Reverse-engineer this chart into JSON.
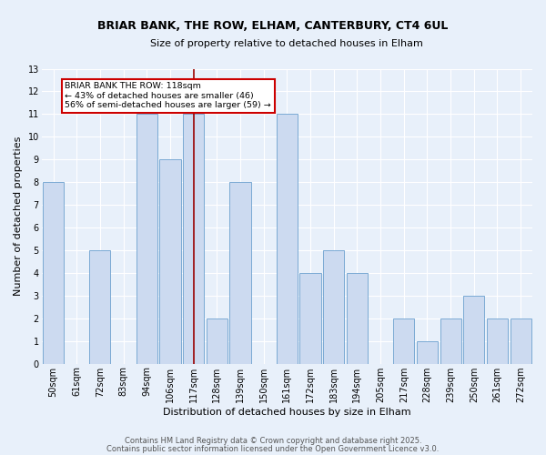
{
  "title": "BRIAR BANK, THE ROW, ELHAM, CANTERBURY, CT4 6UL",
  "subtitle": "Size of property relative to detached houses in Elham",
  "xlabel": "Distribution of detached houses by size in Elham",
  "ylabel": "Number of detached properties",
  "bar_color": "#ccdaf0",
  "bar_edge_color": "#7baad4",
  "marker_color": "#990000",
  "marker_value_idx": 6,
  "categories": [
    "50sqm",
    "61sqm",
    "72sqm",
    "83sqm",
    "94sqm",
    "106sqm",
    "117sqm",
    "128sqm",
    "139sqm",
    "150sqm",
    "161sqm",
    "172sqm",
    "183sqm",
    "194sqm",
    "205sqm",
    "217sqm",
    "228sqm",
    "239sqm",
    "250sqm",
    "261sqm",
    "272sqm"
  ],
  "values": [
    8,
    0,
    5,
    0,
    11,
    9,
    11,
    2,
    8,
    0,
    11,
    4,
    5,
    4,
    0,
    2,
    1,
    2,
    3,
    2,
    2
  ],
  "ylim": [
    0,
    13
  ],
  "yticks": [
    0,
    1,
    2,
    3,
    4,
    5,
    6,
    7,
    8,
    9,
    10,
    11,
    12,
    13
  ],
  "annotation_title": "BRIAR BANK THE ROW: 118sqm",
  "annotation_line1": "← 43% of detached houses are smaller (46)",
  "annotation_line2": "56% of semi-detached houses are larger (59) →",
  "footnote1": "Contains HM Land Registry data © Crown copyright and database right 2025.",
  "footnote2": "Contains public sector information licensed under the Open Government Licence v3.0.",
  "background_color": "#e8f0fa",
  "plot_bg_color": "#e8f0fa",
  "grid_color": "#ffffff",
  "annotation_box_color": "#ffffff",
  "annotation_box_edge_color": "#cc0000",
  "title_fontsize": 9,
  "subtitle_fontsize": 8,
  "xlabel_fontsize": 8,
  "ylabel_fontsize": 8,
  "tick_fontsize": 7,
  "footnote_fontsize": 6
}
